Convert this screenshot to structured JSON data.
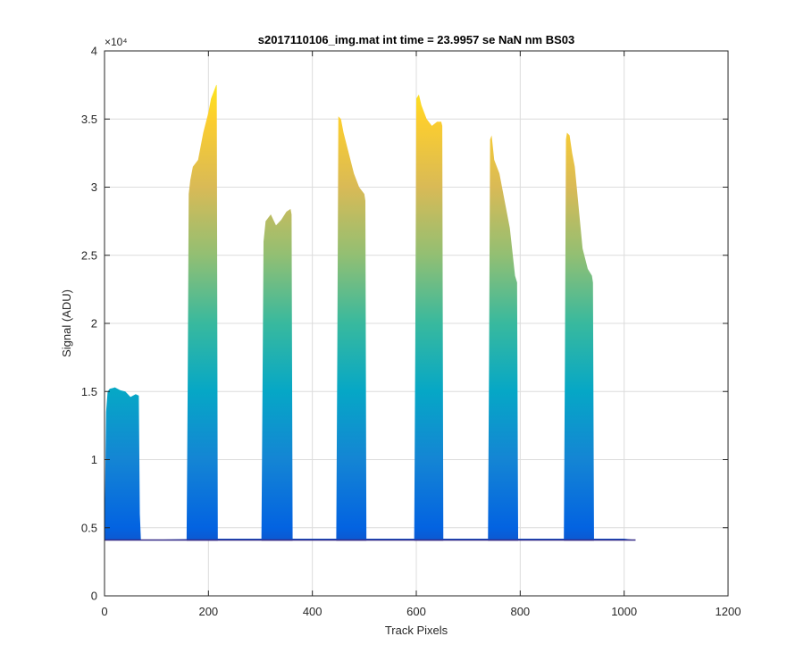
{
  "chart_data": {
    "type": "area",
    "title": "s2017110106_img.mat int time = 23.9957 se  NaN nm BS03",
    "xlabel": "Track Pixels",
    "ylabel": "Signal (ADU)",
    "y_exponent_label": "×10⁴",
    "xlim": [
      0,
      1200
    ],
    "ylim": [
      0,
      4
    ],
    "y_scale_note": "values in units of 10^4 ADU",
    "xticks": [
      0,
      200,
      400,
      600,
      800,
      1000,
      1200
    ],
    "yticks": [
      0,
      0.5,
      1,
      1.5,
      2,
      2.5,
      3,
      3.5,
      4
    ],
    "xtick_labels": [
      "0",
      "200",
      "400",
      "600",
      "800",
      "1000",
      "1200"
    ],
    "ytick_labels": [
      "0",
      "0.5",
      "1",
      "1.5",
      "2",
      "2.5",
      "3",
      "3.5",
      "4"
    ],
    "grid": true,
    "colormap": "parula",
    "colors": [
      "#352a87",
      "#0363e1",
      "#1485d4",
      "#06a7c6",
      "#38b99e",
      "#92bf73",
      "#d9ba56",
      "#fcce2e",
      "#f9fb0e"
    ],
    "baseline": 0.41,
    "series": [
      {
        "x": [
          0,
          3,
          6,
          10,
          20,
          30,
          40,
          50,
          60,
          66,
          68,
          70,
          200,
          210,
          400,
          420,
          600,
          620,
          800,
          820,
          1000,
          1022
        ],
        "values": [
          0.45,
          1.35,
          1.5,
          1.52,
          1.53,
          1.51,
          1.5,
          1.46,
          1.48,
          1.47,
          0.6,
          0.41,
          0.42,
          0.42,
          0.42,
          0.42,
          0.42,
          0.42,
          0.42,
          0.42,
          0.42,
          0.41
        ]
      },
      {
        "x": [
          158,
          160,
          162,
          165,
          170,
          180,
          190,
          200,
          205,
          210,
          215,
          216,
          218
        ],
        "values": [
          0.43,
          1.5,
          2.95,
          3.05,
          3.15,
          3.2,
          3.4,
          3.55,
          3.65,
          3.7,
          3.75,
          3.75,
          0.43
        ]
      },
      {
        "x": [
          302,
          304,
          306,
          310,
          320,
          330,
          340,
          350,
          358,
          360,
          362
        ],
        "values": [
          0.43,
          1.5,
          2.6,
          2.75,
          2.8,
          2.72,
          2.76,
          2.82,
          2.84,
          2.8,
          0.43
        ]
      },
      {
        "x": [
          446,
          448,
          450,
          455,
          460,
          470,
          480,
          490,
          500,
          502,
          504
        ],
        "values": [
          0.43,
          1.8,
          3.52,
          3.5,
          3.4,
          3.25,
          3.1,
          3.0,
          2.95,
          2.9,
          0.43
        ]
      },
      {
        "x": [
          596,
          598,
          600,
          605,
          610,
          620,
          630,
          640,
          648,
          650,
          652
        ],
        "values": [
          0.43,
          1.8,
          3.65,
          3.68,
          3.6,
          3.5,
          3.45,
          3.48,
          3.48,
          3.45,
          0.43
        ]
      },
      {
        "x": [
          738,
          740,
          742,
          745,
          750,
          760,
          770,
          780,
          790,
          794,
          796
        ],
        "values": [
          0.43,
          1.7,
          3.35,
          3.38,
          3.2,
          3.1,
          2.9,
          2.7,
          2.35,
          2.3,
          0.43
        ]
      },
      {
        "x": [
          884,
          886,
          888,
          890,
          895,
          900,
          905,
          910,
          920,
          930,
          938,
          940,
          942
        ],
        "values": [
          0.43,
          1.7,
          3.35,
          3.4,
          3.38,
          3.25,
          3.15,
          2.95,
          2.55,
          2.4,
          2.35,
          2.3,
          0.43
        ]
      }
    ]
  }
}
